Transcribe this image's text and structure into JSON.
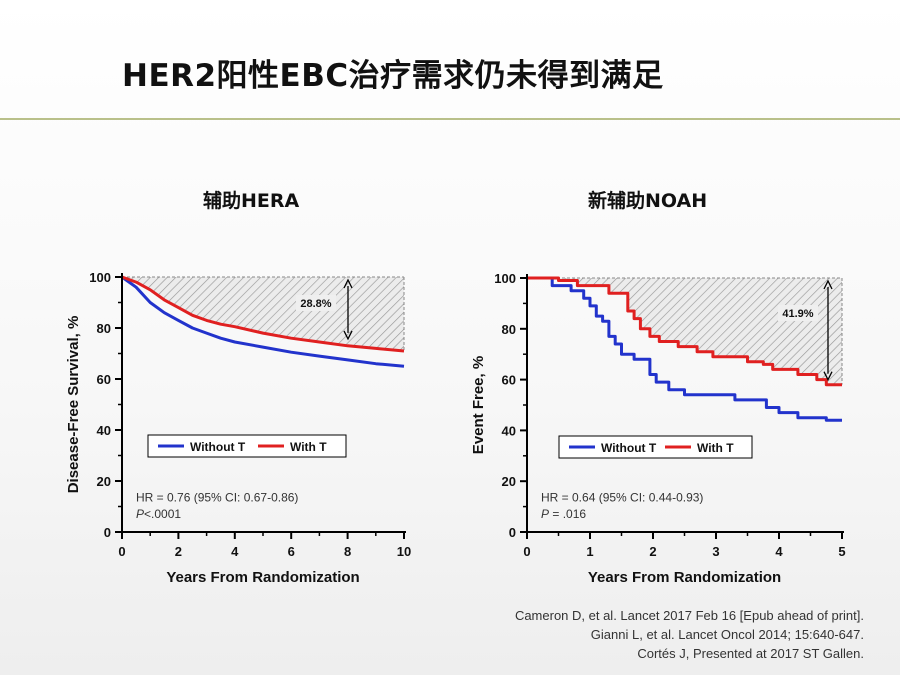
{
  "slide_title": "HER2阳性EBC治疗需求仍未得到满足",
  "charts": {
    "left_title": "辅助HERA",
    "right_title": "新辅助NOAH"
  },
  "references": [
    "Cameron D, et al. Lancet 2017 Feb 16 [Epub ahead of print].",
    "Gianni L, et al. Lancet Oncol 2014; 15:640-647.",
    "Cortés J, Presented at 2017 ST Gallen."
  ],
  "colors": {
    "without_t": "#2233cc",
    "with_t": "#e02020",
    "hatch": "#999999"
  },
  "chart_data": [
    {
      "type": "line",
      "title": "辅助HERA",
      "xlabel": "Years From Randomization",
      "ylabel": "Disease-Free Survival, %",
      "xlim": [
        0,
        10
      ],
      "ylim": [
        0,
        100
      ],
      "xticks": [
        0,
        2,
        4,
        6,
        8,
        10
      ],
      "yticks": [
        0,
        20,
        40,
        60,
        80,
        100
      ],
      "annotation": "28.8%",
      "hr_text": "HR = 0.76 (95% CI: 0.67-0.86)",
      "p_label": "P",
      "p_value": "<.0001",
      "legend": "inside-center",
      "series": [
        {
          "name": "Without T",
          "color": "#2233cc",
          "points": [
            [
              0,
              100
            ],
            [
              0.5,
              96
            ],
            [
              1,
              90
            ],
            [
              1.5,
              86
            ],
            [
              2,
              83
            ],
            [
              2.5,
              80
            ],
            [
              3,
              78
            ],
            [
              3.5,
              76
            ],
            [
              4,
              74.5
            ],
            [
              5,
              72.5
            ],
            [
              6,
              70.5
            ],
            [
              7,
              69
            ],
            [
              8,
              67.5
            ],
            [
              9,
              66
            ],
            [
              10,
              65
            ]
          ]
        },
        {
          "name": "With T",
          "color": "#e02020",
          "points": [
            [
              0,
              100
            ],
            [
              0.5,
              98
            ],
            [
              1,
              95
            ],
            [
              1.5,
              91
            ],
            [
              2,
              88
            ],
            [
              2.5,
              85
            ],
            [
              3,
              83
            ],
            [
              3.5,
              81.5
            ],
            [
              4,
              80.5
            ],
            [
              5,
              78
            ],
            [
              6,
              76
            ],
            [
              7,
              74.5
            ],
            [
              8,
              73
            ],
            [
              9,
              72
            ],
            [
              10,
              71
            ]
          ]
        }
      ]
    },
    {
      "type": "line",
      "title": "新辅助NOAH",
      "xlabel": "Years From Randomization",
      "ylabel": "Event Free, %",
      "xlim": [
        0,
        5
      ],
      "ylim": [
        0,
        100
      ],
      "xticks": [
        0,
        1,
        2,
        3,
        4,
        5
      ],
      "yticks": [
        0,
        20,
        40,
        60,
        80,
        100
      ],
      "annotation": "41.9%",
      "hr_text": "HR = 0.64 (95% CI: 0.44-0.93)",
      "p_label": "P",
      "p_value": " = .016",
      "legend": "inside-center",
      "series": [
        {
          "name": "Without T",
          "color": "#2233cc",
          "steps": [
            [
              0,
              100
            ],
            [
              0.4,
              97
            ],
            [
              0.7,
              95
            ],
            [
              0.9,
              92
            ],
            [
              1,
              89
            ],
            [
              1.1,
              85
            ],
            [
              1.2,
              83
            ],
            [
              1.3,
              77
            ],
            [
              1.4,
              74
            ],
            [
              1.5,
              70
            ],
            [
              1.7,
              68
            ],
            [
              1.95,
              62
            ],
            [
              2.05,
              59
            ],
            [
              2.25,
              56
            ],
            [
              2.5,
              54
            ],
            [
              3.3,
              52
            ],
            [
              3.8,
              49
            ],
            [
              4,
              47
            ],
            [
              4.3,
              45
            ],
            [
              4.75,
              44
            ],
            [
              5,
              44
            ]
          ]
        },
        {
          "name": "With T",
          "color": "#e02020",
          "steps": [
            [
              0,
              100
            ],
            [
              0.5,
              99
            ],
            [
              0.8,
              97
            ],
            [
              1.3,
              94
            ],
            [
              1.6,
              87
            ],
            [
              1.7,
              84
            ],
            [
              1.8,
              80
            ],
            [
              1.95,
              77
            ],
            [
              2.1,
              75
            ],
            [
              2.4,
              73
            ],
            [
              2.7,
              71
            ],
            [
              2.95,
              69
            ],
            [
              3.5,
              67
            ],
            [
              3.75,
              66
            ],
            [
              3.9,
              64
            ],
            [
              4.3,
              62
            ],
            [
              4.6,
              60
            ],
            [
              4.75,
              58
            ],
            [
              5,
              58
            ]
          ]
        }
      ]
    }
  ]
}
